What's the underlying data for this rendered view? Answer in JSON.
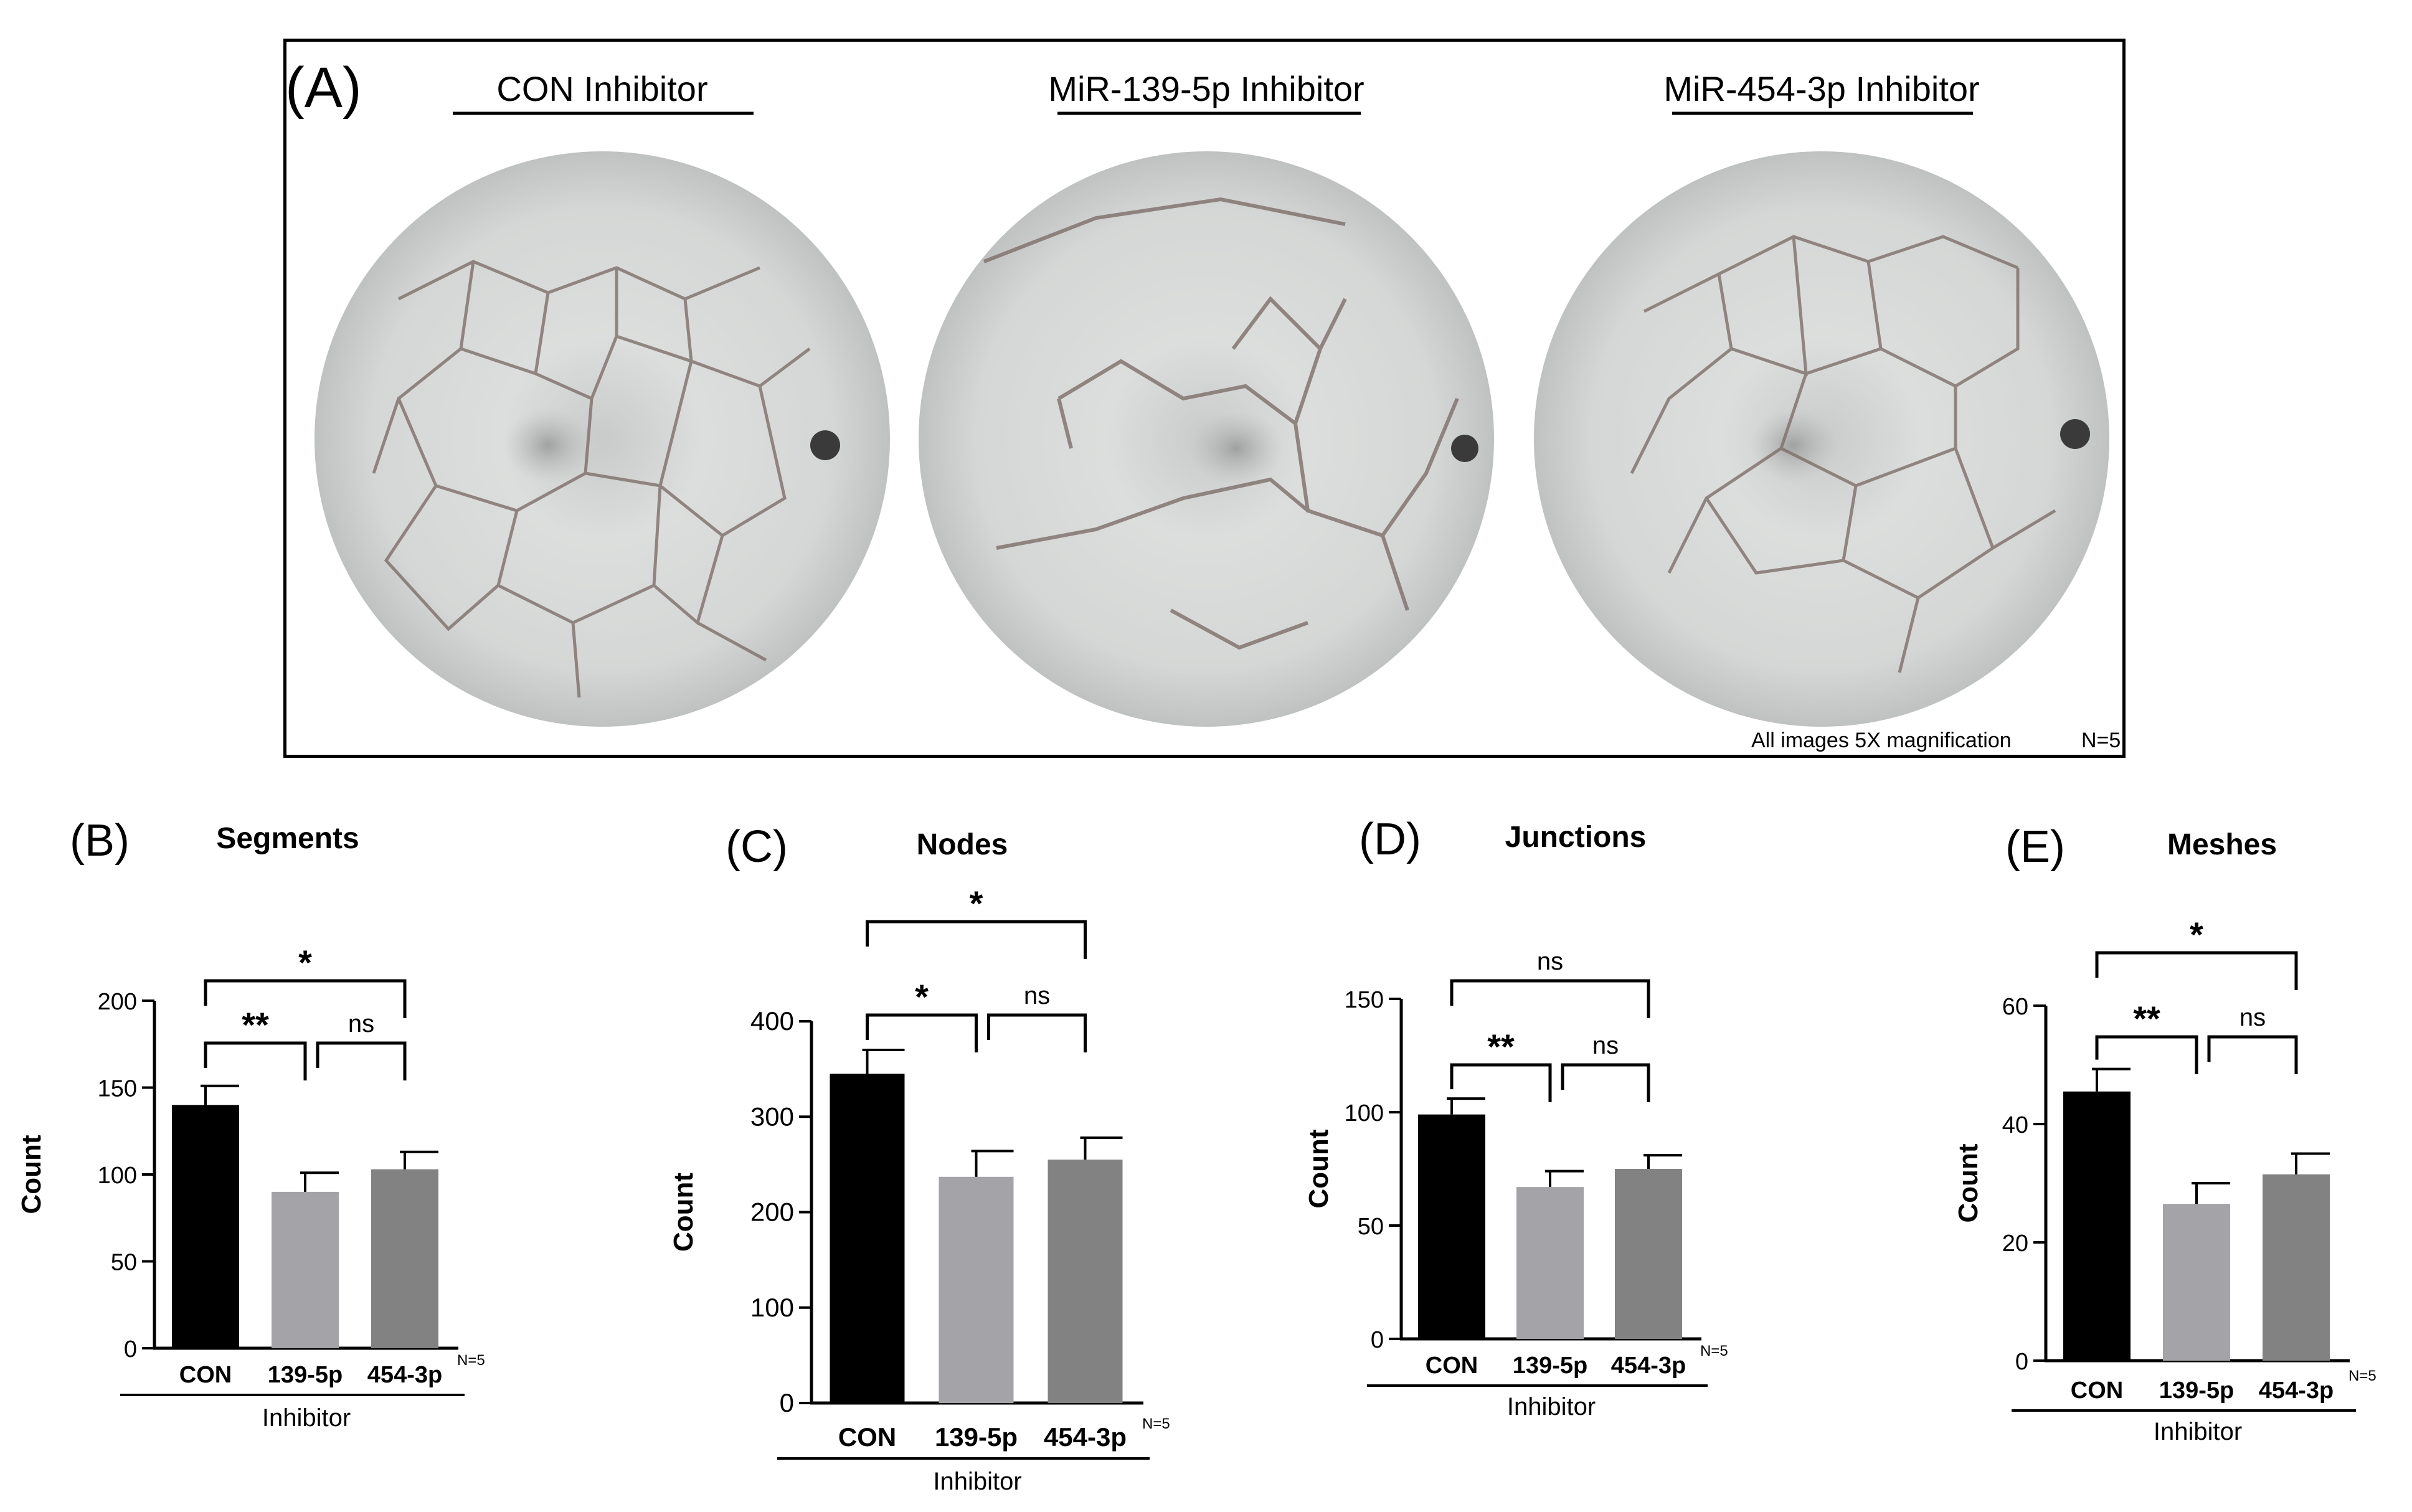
{
  "panel_a": {
    "letter": "(A)",
    "images": [
      {
        "label": "CON Inhibitor"
      },
      {
        "label": "MiR-139-5p Inhibitor"
      },
      {
        "label": "MiR-454-3p Inhibitor"
      }
    ],
    "caption": "All images 5X magnification",
    "n_label": "N=5"
  },
  "chart_data": [
    {
      "type": "bar",
      "letter": "(B)",
      "title": "Segments",
      "ylabel": "Count",
      "xlabel": "Inhibitor",
      "categories": [
        "CON",
        "139-5p",
        "454-3p"
      ],
      "values": [
        140,
        90,
        103
      ],
      "errors": [
        11,
        11,
        10
      ],
      "bar_colors": [
        "#000000",
        "#a4a4a8",
        "#828282"
      ],
      "ylim": [
        0,
        200
      ],
      "yticks": [
        0,
        50,
        100,
        150,
        200
      ],
      "n_label": "N=5",
      "comparisons": [
        {
          "from": 0,
          "to": 2,
          "label": "*",
          "level": 2
        },
        {
          "from": 0,
          "to": 1,
          "label": "**",
          "level": 1
        },
        {
          "from": 1,
          "to": 2,
          "label": "ns",
          "level": 1
        }
      ]
    },
    {
      "type": "bar",
      "letter": "(C)",
      "title": "Nodes",
      "ylabel": "Count",
      "xlabel": "Inhibitor",
      "categories": [
        "CON",
        "139-5p",
        "454-3p"
      ],
      "values": [
        345,
        237,
        255
      ],
      "errors": [
        25,
        27,
        23
      ],
      "bar_colors": [
        "#000000",
        "#a4a4a8",
        "#828282"
      ],
      "ylim": [
        0,
        400
      ],
      "yticks": [
        0,
        100,
        200,
        300,
        400
      ],
      "n_label": "N=5",
      "comparisons": [
        {
          "from": 0,
          "to": 2,
          "label": "*",
          "level": 2
        },
        {
          "from": 0,
          "to": 1,
          "label": "*",
          "level": 1
        },
        {
          "from": 1,
          "to": 2,
          "label": "ns",
          "level": 1
        }
      ]
    },
    {
      "type": "bar",
      "letter": "(D)",
      "title": "Junctions",
      "ylabel": "Count",
      "xlabel": "Inhibitor",
      "categories": [
        "CON",
        "139-5p",
        "454-3p"
      ],
      "values": [
        99,
        67,
        75
      ],
      "errors": [
        7,
        7,
        6
      ],
      "bar_colors": [
        "#000000",
        "#a4a4a8",
        "#828282"
      ],
      "ylim": [
        0,
        150
      ],
      "yticks": [
        0,
        50,
        100,
        150
      ],
      "n_label": "N=5",
      "comparisons": [
        {
          "from": 0,
          "to": 2,
          "label": "ns",
          "level": 2
        },
        {
          "from": 0,
          "to": 1,
          "label": "**",
          "level": 1
        },
        {
          "from": 1,
          "to": 2,
          "label": "ns",
          "level": 1
        }
      ]
    },
    {
      "type": "bar",
      "letter": "(E)",
      "title": "Meshes",
      "ylabel": "Count",
      "xlabel": "Inhibitor",
      "categories": [
        "CON",
        "139-5p",
        "454-3p"
      ],
      "values": [
        45.5,
        26.5,
        31.5
      ],
      "errors": [
        3.8,
        3.5,
        3.5
      ],
      "bar_colors": [
        "#000000",
        "#a4a4a8",
        "#828282"
      ],
      "ylim": [
        0,
        60
      ],
      "yticks": [
        0,
        20,
        40,
        60
      ],
      "n_label": "N=5",
      "comparisons": [
        {
          "from": 0,
          "to": 2,
          "label": "*",
          "level": 2
        },
        {
          "from": 0,
          "to": 1,
          "label": "**",
          "level": 1
        },
        {
          "from": 1,
          "to": 2,
          "label": "ns",
          "level": 1
        }
      ]
    }
  ]
}
